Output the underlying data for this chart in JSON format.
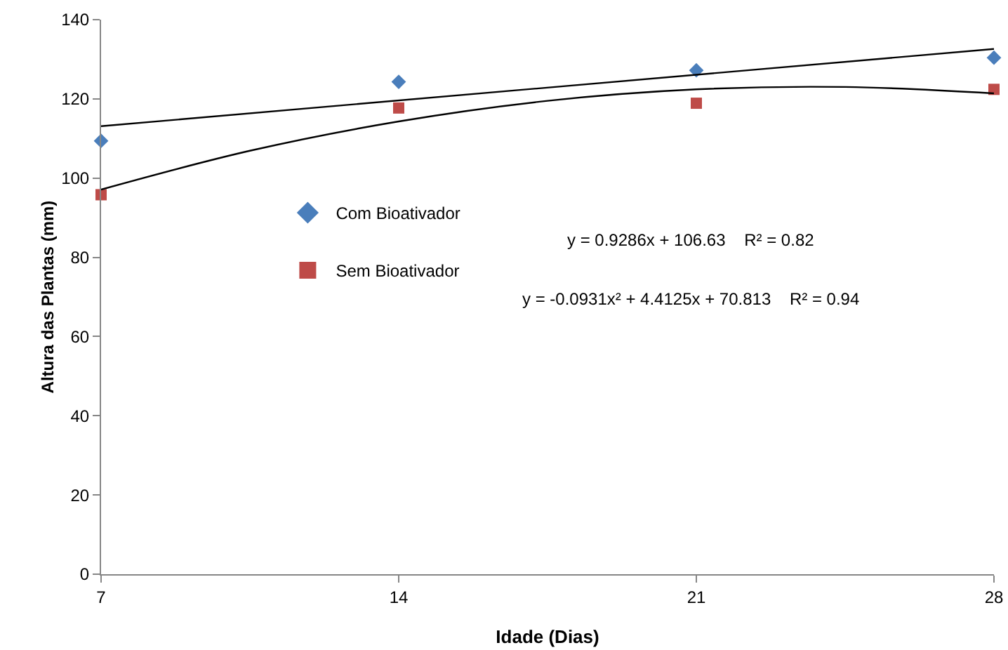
{
  "chart_data": {
    "type": "scatter",
    "xlabel": "Idade (Dias)",
    "ylabel": "Altura das Plantas (mm)",
    "xlim": [
      7,
      28
    ],
    "xticks": [
      7,
      14,
      21,
      28
    ],
    "ylim": [
      0,
      140
    ],
    "yticks": [
      0,
      20,
      40,
      60,
      80,
      100,
      120,
      140
    ],
    "grid": false,
    "legend": "left",
    "annotations": [
      "y = 0.9286x + 106.63    R² = 0.82",
      "y = -0.0931x² + 4.4125x + 70.813    R² = 0.94"
    ],
    "series": [
      {
        "name": "Com Bioativador",
        "marker": "diamond",
        "color": "#4a7ebb",
        "x": [
          7,
          14,
          21,
          28
        ],
        "values": [
          109.4,
          124.3,
          127.2,
          130.4
        ]
      },
      {
        "name": "Sem Bioativador",
        "marker": "square",
        "color": "#be4b48",
        "x": [
          7,
          14,
          21,
          28
        ],
        "values": [
          95.8,
          117.7,
          118.9,
          122.4
        ]
      },
      {
        "type": "line",
        "marker": "none",
        "color": "#000000",
        "x": [
          7,
          28
        ],
        "values": [
          113.1,
          132.6
        ]
      },
      {
        "type": "line",
        "marker": "none",
        "color": "#000000",
        "x": [
          7,
          10.5,
          14,
          17.5,
          21,
          24.5,
          28
        ],
        "values": [
          97.1,
          106.9,
          114.3,
          119.5,
          122.4,
          123.0,
          121.4
        ]
      }
    ]
  }
}
